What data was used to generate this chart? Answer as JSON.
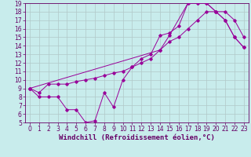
{
  "xlabel": "Windchill (Refroidissement éolien,°C)",
  "xlim": [
    -0.5,
    23.5
  ],
  "ylim": [
    5,
    19
  ],
  "xticks": [
    0,
    1,
    2,
    3,
    4,
    5,
    6,
    7,
    8,
    9,
    10,
    11,
    12,
    13,
    14,
    15,
    16,
    17,
    18,
    19,
    20,
    21,
    22,
    23
  ],
  "yticks": [
    5,
    6,
    7,
    8,
    9,
    10,
    11,
    12,
    13,
    14,
    15,
    16,
    17,
    18,
    19
  ],
  "bg_color": "#c8ecec",
  "line_color": "#990099",
  "grid_color": "#b0c8c8",
  "curve1_x": [
    0,
    1,
    2,
    3,
    4,
    5,
    6,
    7,
    8,
    9,
    10,
    11,
    12,
    13,
    14,
    15,
    16,
    17,
    18,
    19,
    20,
    21,
    22,
    23
  ],
  "curve1_y": [
    9.0,
    8.0,
    8.0,
    8.0,
    6.5,
    6.5,
    5.0,
    5.2,
    8.5,
    6.8,
    10.0,
    11.5,
    12.5,
    13.0,
    15.2,
    15.5,
    16.3,
    19.0,
    19.0,
    19.0,
    18.0,
    17.0,
    15.0,
    13.8
  ],
  "curve2_x": [
    0,
    1,
    2,
    3,
    4,
    5,
    6,
    7,
    8,
    9,
    10,
    11,
    12,
    13,
    14,
    15,
    16,
    17,
    18,
    19,
    20,
    21,
    22,
    23
  ],
  "curve2_y": [
    9.0,
    8.5,
    9.5,
    9.5,
    9.5,
    9.8,
    10.0,
    10.2,
    10.5,
    10.8,
    11.0,
    11.5,
    12.0,
    12.5,
    13.5,
    14.5,
    15.0,
    16.0,
    17.0,
    18.0,
    18.0,
    18.0,
    17.0,
    15.0
  ],
  "curve3_x": [
    0,
    14,
    15,
    17,
    18,
    19,
    20,
    21,
    22,
    23
  ],
  "curve3_y": [
    9.0,
    13.5,
    15.2,
    19.0,
    19.0,
    19.0,
    18.0,
    17.0,
    15.0,
    13.8
  ],
  "tick_fontsize": 5.5,
  "xlabel_fontsize": 6.5,
  "text_color": "#660066",
  "spine_color": "#660066"
}
